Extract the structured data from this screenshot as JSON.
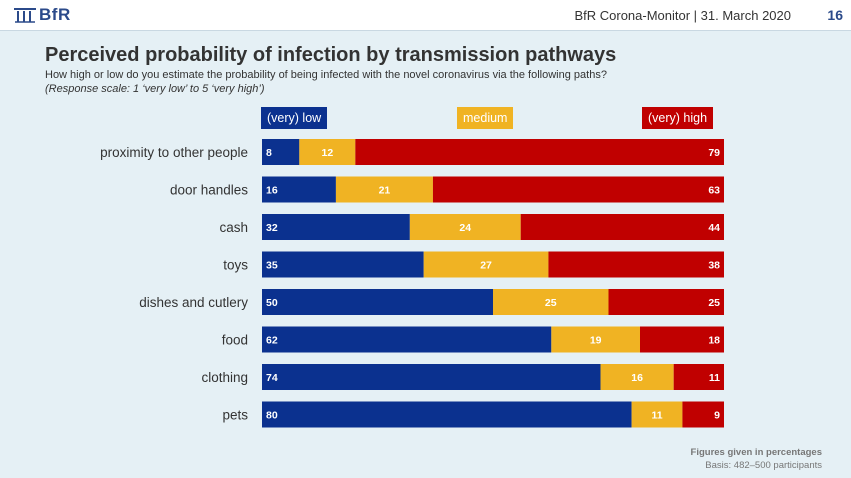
{
  "header": {
    "logo_text": "BfR",
    "report": "BfR Corona-Monitor | 31. March 2020",
    "page": "16"
  },
  "title": "Perceived probability of infection by transmission pathways",
  "subtitle": "How high or low do you estimate the probability of being infected with the novel coronavirus via the following paths?",
  "scale_note": "(Response scale: 1 ‘very low’ to 5 ‘very high’)",
  "colors": {
    "low": "#0b318f",
    "medium": "#f0b323",
    "high": "#c00000"
  },
  "chart_data": {
    "type": "bar",
    "stacked": true,
    "orientation": "horizontal",
    "categories": [
      "proximity to other people",
      "door handles",
      "cash",
      "toys",
      "dishes and cutlery",
      "food",
      "clothing",
      "pets"
    ],
    "series": [
      {
        "name": "(very) low",
        "values": [
          8,
          16,
          32,
          35,
          50,
          62,
          74,
          80
        ]
      },
      {
        "name": "medium",
        "values": [
          12,
          21,
          24,
          27,
          25,
          19,
          16,
          11
        ]
      },
      {
        "name": "(very) high",
        "values": [
          79,
          63,
          44,
          38,
          25,
          18,
          11,
          9
        ]
      }
    ],
    "legend_position": "top"
  },
  "footer": {
    "note": "Figures given in percentages",
    "basis": "Basis: 482–500 participants"
  }
}
